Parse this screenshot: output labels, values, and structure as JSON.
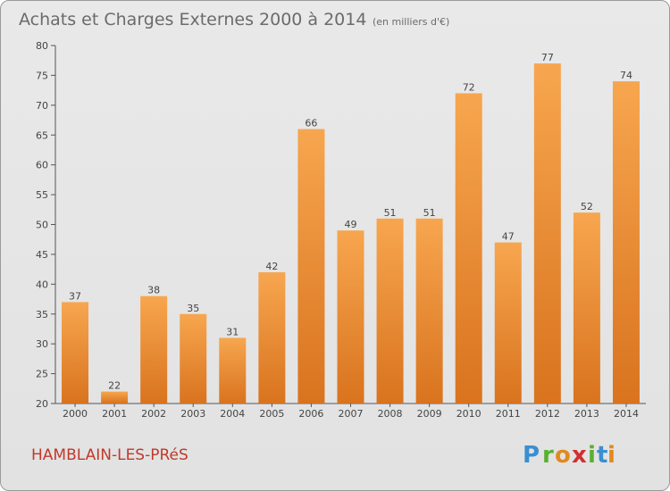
{
  "title": "Achats et Charges Externes 2000 à 2014",
  "unit": "(en milliers d'€)",
  "commune": "HAMBLAIN-LES-PRéS",
  "logo": {
    "letters": [
      "P",
      "r",
      "o",
      "x",
      "i",
      "t",
      "i"
    ],
    "colors": [
      "#3a8fd1",
      "#5ab031",
      "#e08a1e",
      "#d12f2f",
      "#5ab031",
      "#3a8fd1",
      "#e08a1e"
    ]
  },
  "colors": {
    "bar_light": "#f7a64f",
    "bar_dark": "#d9731e",
    "axis": "#555555",
    "grid": "#c8c8c8"
  },
  "chart_data": {
    "type": "bar",
    "title": "Achats et Charges Externes 2000 à 2014",
    "ylabel": "",
    "xlabel": "",
    "categories": [
      "2000",
      "2001",
      "2002",
      "2003",
      "2004",
      "2005",
      "2006",
      "2007",
      "2008",
      "2009",
      "2010",
      "2011",
      "2012",
      "2013",
      "2014"
    ],
    "values": [
      37,
      22,
      38,
      35,
      31,
      42,
      66,
      49,
      51,
      51,
      72,
      47,
      77,
      52,
      74
    ],
    "ylim": [
      20,
      80
    ],
    "yticks": [
      20,
      25,
      30,
      35,
      40,
      45,
      50,
      55,
      60,
      65,
      70,
      75,
      80
    ],
    "grid": false,
    "data_labels": true
  }
}
